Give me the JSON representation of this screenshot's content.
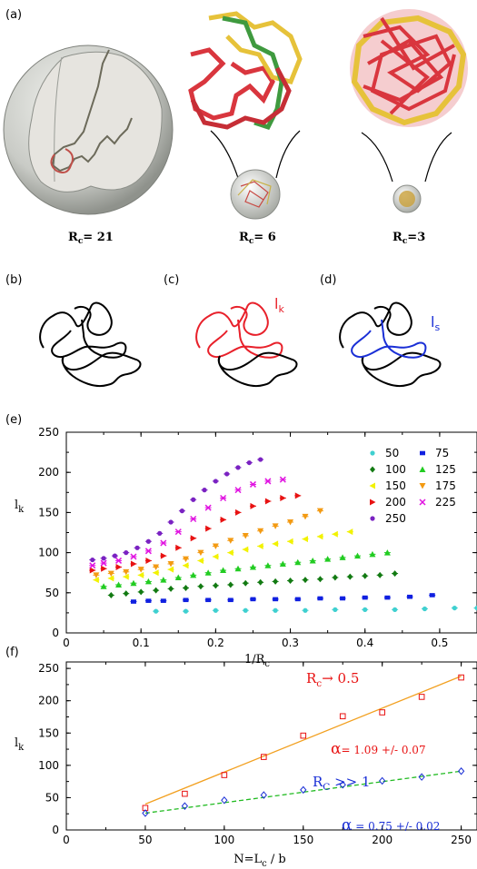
{
  "panels": {
    "a": {
      "label": "(a)"
    },
    "b": {
      "label": "(b)"
    },
    "c": {
      "label": "(c)",
      "tag_main": "l",
      "tag_sub": "k",
      "tag_color": "#e8202a"
    },
    "d": {
      "label": "(d)",
      "tag_main": "l",
      "tag_sub": "s",
      "tag_color": "#1a2fd6"
    },
    "e": {
      "label": "(e)"
    },
    "f": {
      "label": "(f)"
    }
  },
  "confinement_labels": [
    {
      "main": "R",
      "sub": "c",
      "rest": "= 21"
    },
    {
      "main": "R",
      "sub": "c",
      "rest": "= 6"
    },
    {
      "main": "R",
      "sub": "c",
      "rest": "=3"
    }
  ],
  "colors": {
    "red_chain": "#d9363e",
    "yellow_chain": "#e6c23a",
    "green_chain": "#3f9a3f",
    "sphere": "#c8cac6"
  },
  "chart_data": [
    {
      "type": "scatter",
      "panel": "e",
      "xlabel_main": "1/R",
      "xlabel_sub": "c",
      "ylabel_main": "l",
      "ylabel_sub": "k",
      "xlim": [
        0,
        0.55
      ],
      "ylim": [
        0,
        250
      ],
      "xticks": [
        "0",
        "0.1",
        "0.2",
        "0.3",
        "0.4",
        "0.5"
      ],
      "xtick_values": [
        0,
        0.1,
        0.2,
        0.3,
        0.4,
        0.5
      ],
      "yticks": [
        "0",
        "50",
        "100",
        "150",
        "200",
        "250"
      ],
      "ytick_values": [
        0,
        50,
        100,
        150,
        200,
        250
      ],
      "legend_position": "right",
      "series": [
        {
          "name": "50",
          "color": "#3fd0d0",
          "marker": "circle",
          "x": [
            0.12,
            0.16,
            0.2,
            0.24,
            0.28,
            0.32,
            0.36,
            0.4,
            0.44,
            0.48,
            0.52,
            0.55
          ],
          "y": [
            27,
            27,
            28,
            28,
            28,
            28,
            29,
            29,
            29,
            30,
            31,
            31
          ]
        },
        {
          "name": "75",
          "color": "#1020e0",
          "marker": "square",
          "x": [
            0.09,
            0.11,
            0.13,
            0.16,
            0.19,
            0.22,
            0.25,
            0.28,
            0.31,
            0.34,
            0.37,
            0.4,
            0.43,
            0.46,
            0.49
          ],
          "y": [
            39,
            40,
            40,
            41,
            41,
            41,
            42,
            42,
            42,
            43,
            43,
            44,
            44,
            45,
            47
          ]
        },
        {
          "name": "100",
          "color": "#127a12",
          "marker": "diamond",
          "x": [
            0.06,
            0.08,
            0.1,
            0.12,
            0.14,
            0.16,
            0.18,
            0.2,
            0.22,
            0.24,
            0.26,
            0.28,
            0.3,
            0.32,
            0.34,
            0.36,
            0.38,
            0.4,
            0.42,
            0.44
          ],
          "y": [
            47,
            49,
            51,
            53,
            55,
            56,
            58,
            59,
            60,
            62,
            63,
            64,
            65,
            66,
            67,
            69,
            70,
            71,
            72,
            74
          ]
        },
        {
          "name": "125",
          "color": "#22cc22",
          "marker": "triangle-up",
          "x": [
            0.05,
            0.07,
            0.09,
            0.11,
            0.13,
            0.15,
            0.17,
            0.19,
            0.21,
            0.23,
            0.25,
            0.27,
            0.29,
            0.31,
            0.33,
            0.35,
            0.37,
            0.39,
            0.41,
            0.43
          ],
          "y": [
            58,
            60,
            62,
            64,
            66,
            69,
            72,
            75,
            78,
            80,
            82,
            84,
            86,
            88,
            90,
            92,
            94,
            96,
            98,
            100
          ]
        },
        {
          "name": "150",
          "color": "#f2f200",
          "marker": "triangle-left",
          "x": [
            0.04,
            0.06,
            0.08,
            0.1,
            0.12,
            0.14,
            0.16,
            0.18,
            0.2,
            0.22,
            0.24,
            0.26,
            0.28,
            0.3,
            0.32,
            0.34,
            0.36,
            0.38
          ],
          "y": [
            66,
            68,
            70,
            72,
            75,
            79,
            84,
            90,
            95,
            100,
            104,
            108,
            111,
            114,
            117,
            120,
            123,
            126
          ]
        },
        {
          "name": "175",
          "color": "#f39a12",
          "marker": "triangle-down",
          "x": [
            0.04,
            0.06,
            0.08,
            0.1,
            0.12,
            0.14,
            0.16,
            0.18,
            0.2,
            0.22,
            0.24,
            0.26,
            0.28,
            0.3,
            0.32,
            0.34
          ],
          "y": [
            72,
            74,
            76,
            79,
            82,
            86,
            92,
            100,
            108,
            115,
            121,
            127,
            133,
            138,
            145,
            152
          ]
        },
        {
          "name": "200",
          "color": "#e81212",
          "marker": "triangle-right",
          "x": [
            0.035,
            0.05,
            0.07,
            0.09,
            0.11,
            0.13,
            0.15,
            0.17,
            0.19,
            0.21,
            0.23,
            0.25,
            0.27,
            0.29,
            0.31
          ],
          "y": [
            78,
            80,
            82,
            86,
            90,
            96,
            106,
            118,
            130,
            141,
            150,
            158,
            164,
            168,
            171
          ]
        },
        {
          "name": "225",
          "color": "#e012e0",
          "marker": "x",
          "x": [
            0.035,
            0.05,
            0.07,
            0.09,
            0.11,
            0.13,
            0.15,
            0.17,
            0.19,
            0.21,
            0.23,
            0.25,
            0.27,
            0.29
          ],
          "y": [
            84,
            87,
            90,
            95,
            102,
            112,
            126,
            142,
            156,
            168,
            178,
            185,
            189,
            191
          ]
        },
        {
          "name": "250",
          "color": "#7a22c2",
          "marker": "circle",
          "x": [
            0.035,
            0.05,
            0.065,
            0.08,
            0.095,
            0.11,
            0.125,
            0.14,
            0.155,
            0.17,
            0.185,
            0.2,
            0.215,
            0.23,
            0.245,
            0.26
          ],
          "y": [
            91,
            93,
            96,
            100,
            106,
            114,
            124,
            138,
            152,
            166,
            178,
            189,
            198,
            206,
            212,
            216
          ]
        }
      ]
    },
    {
      "type": "scatter",
      "panel": "f",
      "xlabel": "N=L",
      "xlabel_sub": "c",
      "xlabel_rest": " / b",
      "ylabel_main": "l",
      "ylabel_sub": "k",
      "xlim": [
        0,
        260
      ],
      "ylim": [
        0,
        260
      ],
      "xticks": [
        "0",
        "50",
        "100",
        "150",
        "200",
        "250"
      ],
      "xtick_values": [
        0,
        50,
        100,
        150,
        200,
        250
      ],
      "yticks": [
        "0",
        "50",
        "100",
        "150",
        "200",
        "250"
      ],
      "ytick_values": [
        0,
        50,
        100,
        150,
        200,
        250
      ],
      "series": [
        {
          "name": "R_c → 0.5",
          "color": "#e81212",
          "marker": "open-square",
          "x": [
            50,
            75,
            100,
            125,
            150,
            175,
            200,
            225,
            250
          ],
          "y": [
            34,
            56,
            85,
            113,
            146,
            176,
            182,
            206,
            236
          ],
          "fit": {
            "color": "#f2a020",
            "style": "solid",
            "x": [
              50,
              250
            ],
            "y": [
              40,
              238
            ]
          }
        },
        {
          "name": "R_c >> 1",
          "color": "#1a2fd6",
          "marker": "open-diamond",
          "x": [
            50,
            75,
            100,
            125,
            150,
            175,
            200,
            225,
            250
          ],
          "y": [
            26,
            37,
            46,
            54,
            62,
            70,
            76,
            82,
            91
          ],
          "fit": {
            "color": "#22bb22",
            "style": "dashed",
            "x": [
              50,
              250
            ],
            "y": [
              26,
              91
            ]
          }
        }
      ],
      "annotations": {
        "top_label": {
          "main": "R",
          "sub": "c",
          "rest": "→ 0.5",
          "color": "#e81212"
        },
        "top_alpha": {
          "symbol": "α",
          "rest": "= 1.09 +/- 0.07",
          "color": "#e81212"
        },
        "bottom_label": {
          "main": "R",
          "sub": "C",
          "rest": " >> 1",
          "color": "#1a2fd6"
        },
        "bottom_alpha": {
          "symbol": "α",
          "rest": " = 0.75 +/- 0.02",
          "color": "#1a2fd6"
        }
      }
    }
  ]
}
